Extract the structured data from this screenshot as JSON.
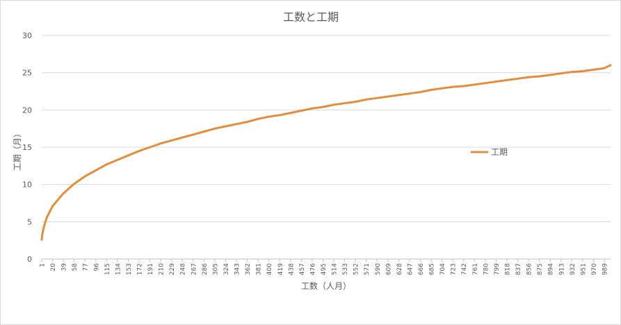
{
  "chart_data": {
    "type": "line",
    "title": "工数と工期",
    "xlabel": "工数（人月）",
    "ylabel": "工期（月）",
    "ylim": [
      0,
      30
    ],
    "y_ticks": [
      "0",
      "5",
      "10",
      "15",
      "20",
      "25",
      "30"
    ],
    "x_range": [
      1,
      1000
    ],
    "x_tick_labels": [
      "1",
      "20",
      "39",
      "58",
      "77",
      "96",
      "115",
      "134",
      "153",
      "172",
      "191",
      "210",
      "229",
      "248",
      "267",
      "286",
      "305",
      "324",
      "343",
      "362",
      "381",
      "400",
      "419",
      "438",
      "457",
      "476",
      "495",
      "514",
      "533",
      "552",
      "571",
      "590",
      "609",
      "628",
      "647",
      "666",
      "685",
      "704",
      "723",
      "742",
      "761",
      "780",
      "799",
      "818",
      "837",
      "856",
      "875",
      "894",
      "913",
      "932",
      "951",
      "970",
      "989"
    ],
    "grid": "horizontal",
    "legend_position": "right",
    "series": [
      {
        "name": "工期",
        "color": "#e38d3b",
        "x": [
          1,
          2,
          5,
          10,
          20,
          39,
          58,
          77,
          96,
          115,
          134,
          153,
          172,
          191,
          210,
          229,
          248,
          267,
          286,
          305,
          324,
          343,
          362,
          381,
          400,
          419,
          438,
          457,
          476,
          495,
          514,
          533,
          552,
          571,
          590,
          609,
          628,
          647,
          666,
          685,
          704,
          723,
          742,
          761,
          780,
          799,
          818,
          837,
          856,
          875,
          894,
          913,
          932,
          951,
          970,
          989,
          1000
        ],
        "values": [
          2.6,
          3.3,
          4.4,
          5.6,
          7.1,
          8.8,
          10.1,
          11.1,
          11.9,
          12.7,
          13.3,
          13.9,
          14.5,
          15.0,
          15.5,
          15.9,
          16.3,
          16.7,
          17.1,
          17.5,
          17.8,
          18.1,
          18.4,
          18.8,
          19.1,
          19.3,
          19.6,
          19.9,
          20.2,
          20.4,
          20.7,
          20.9,
          21.1,
          21.4,
          21.6,
          21.8,
          22.0,
          22.2,
          22.4,
          22.7,
          22.9,
          23.1,
          23.2,
          23.4,
          23.6,
          23.8,
          24.0,
          24.2,
          24.4,
          24.5,
          24.7,
          24.9,
          25.1,
          25.2,
          25.4,
          25.6,
          26.0
        ]
      }
    ]
  }
}
